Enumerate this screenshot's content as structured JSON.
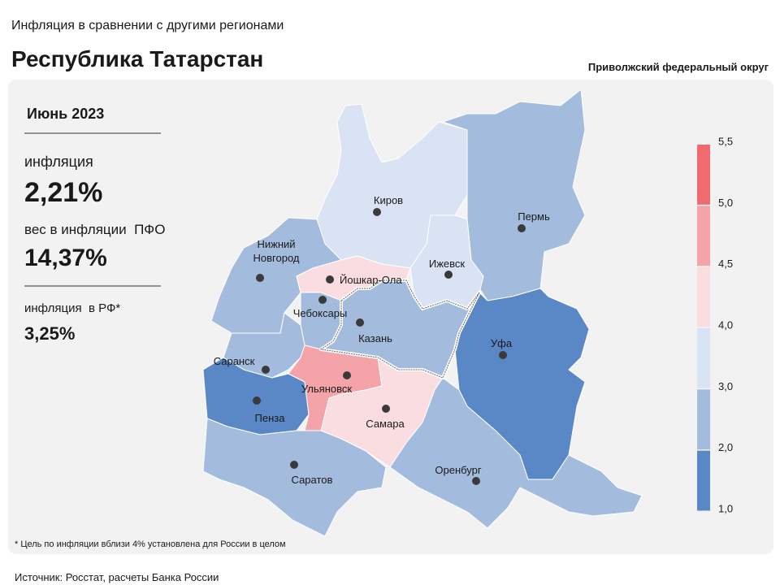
{
  "header": {
    "subtitle": "Инфляция в сравнении с другими регионами",
    "title": "Республика Татарстан",
    "district": "Приволжский федеральный округ"
  },
  "info": {
    "period": "Июнь 2023",
    "inflation_label": "инфляция",
    "inflation_value": "2,21%",
    "weight_label": "вес в инфляции  ПФО",
    "weight_value": "14,37%",
    "rf_label": "инфляция  в РФ*",
    "rf_value": "3,25%"
  },
  "map": {
    "regions": [
      {
        "lines": [
          "Киров"
        ],
        "color": "#d9e3f3"
      },
      {
        "lines": [
          "Пермь"
        ],
        "color": "#a3bbdd"
      },
      {
        "lines": [
          "Ижевск"
        ],
        "color": "#d9e3f3"
      },
      {
        "lines": [
          "Нижний",
          "Новгород"
        ],
        "color": "#a3bbdd"
      },
      {
        "lines": [
          "Йошкар-Ола"
        ],
        "color": "#f9dde0"
      },
      {
        "lines": [
          "Чебоксары"
        ],
        "color": "#a3bbdd"
      },
      {
        "lines": [
          "Казань"
        ],
        "color": "#a3bbdd"
      },
      {
        "lines": [
          "Уфа"
        ],
        "color": "#5a87c5"
      },
      {
        "lines": [
          "Саранск"
        ],
        "color": "#a3bbdd"
      },
      {
        "lines": [
          "Пенза"
        ],
        "color": "#5a87c5"
      },
      {
        "lines": [
          "Ульяновск"
        ],
        "color": "#f4a3a8"
      },
      {
        "lines": [
          "Самара"
        ],
        "color": "#f9dde0"
      },
      {
        "lines": [
          "Саратов"
        ],
        "color": "#a3bbdd"
      },
      {
        "lines": [
          "Оренбург"
        ],
        "color": "#a3bbdd"
      }
    ]
  },
  "legend": {
    "colors": [
      "#5a87c5",
      "#a3bbdd",
      "#d9e3f3",
      "#f9dde0",
      "#f4a3a8",
      "#f06a70"
    ],
    "ticks": [
      "1,0",
      "2,0",
      "3,0",
      "4,0",
      "4,5",
      "5,0",
      "5,5"
    ]
  },
  "footnote": "* Цель по инфляции вблизи 4% установлена для России в целом",
  "source": "Источник: Росстат, расчеты Банка России"
}
